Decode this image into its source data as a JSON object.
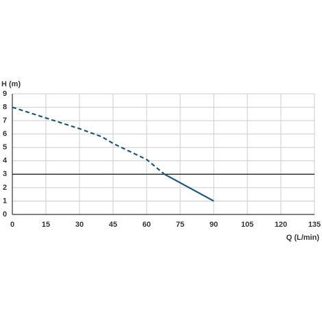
{
  "chart_data": {
    "type": "line",
    "y_label": "H (m)",
    "x_label": "Q (L/min)",
    "xlim": [
      0,
      135
    ],
    "xticks": [
      0,
      15,
      30,
      45,
      60,
      75,
      90,
      105,
      120,
      135
    ],
    "ylim": [
      0,
      9
    ],
    "yticks": [
      0,
      1,
      2,
      3,
      4,
      5,
      6,
      7,
      8,
      9
    ],
    "grid": true,
    "reference_line": 3,
    "series": [
      {
        "color": "#1e5673",
        "dashed": true,
        "x": [
          0,
          15,
          30,
          40,
          45,
          60,
          68
        ],
        "values": [
          8,
          7.2,
          6.4,
          5.8,
          5.3,
          4.1,
          3
        ]
      },
      {
        "color": "#1e5673",
        "dashed": false,
        "x": [
          68,
          90
        ],
        "values": [
          3,
          1
        ]
      }
    ]
  }
}
